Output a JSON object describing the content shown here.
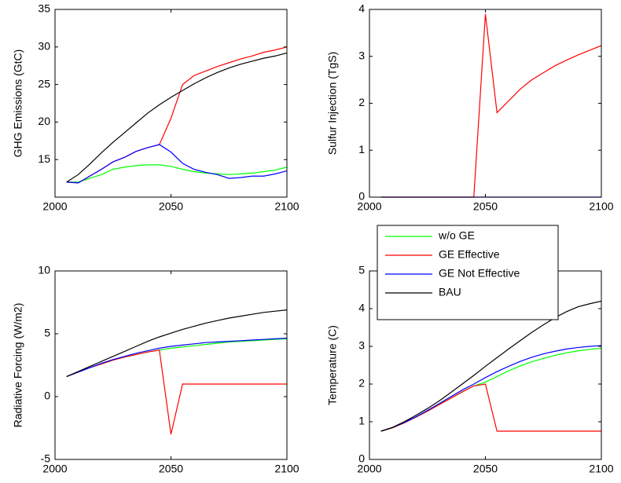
{
  "chart_data": [
    {
      "type": "line",
      "ylabel": "GHG Emissions (GtC)",
      "x": [
        2005,
        2010,
        2015,
        2020,
        2025,
        2030,
        2035,
        2040,
        2045,
        2050,
        2055,
        2060,
        2065,
        2070,
        2075,
        2080,
        2085,
        2090,
        2095,
        2100
      ],
      "xlim": [
        2000,
        2100
      ],
      "xticks": [
        2000,
        2050,
        2100
      ],
      "ylim": [
        10,
        35
      ],
      "yticks": [
        15,
        20,
        25,
        30,
        35
      ],
      "series": [
        {
          "color": "#00ff00",
          "values": [
            12,
            12,
            12.5,
            13,
            13.7,
            14,
            14.2,
            14.3,
            14.3,
            14.1,
            13.7,
            13.4,
            13.2,
            13.1,
            13.0,
            13.1,
            13.2,
            13.4,
            13.6,
            14.0
          ]
        },
        {
          "color": "#ff0000",
          "values": [
            12,
            11.9,
            12.8,
            13.7,
            14.7,
            15.3,
            16.1,
            16.6,
            17.0,
            20.5,
            25,
            26.2,
            26.8,
            27.4,
            27.9,
            28.4,
            28.8,
            29.3,
            29.6,
            30.0
          ]
        },
        {
          "color": "#0000ff",
          "values": [
            12,
            11.9,
            12.8,
            13.7,
            14.7,
            15.3,
            16.1,
            16.6,
            17.0,
            16.0,
            14.5,
            13.7,
            13.3,
            13.0,
            12.5,
            12.6,
            12.8,
            12.8,
            13.1,
            13.5
          ]
        },
        {
          "color": "#000000",
          "values": [
            12,
            13,
            14.4,
            15.9,
            17.3,
            18.6,
            19.9,
            21.2,
            22.3,
            23.3,
            24.2,
            25.1,
            25.9,
            26.6,
            27.2,
            27.7,
            28.1,
            28.5,
            28.8,
            29.2
          ]
        }
      ]
    },
    {
      "type": "line",
      "ylabel": "Sulfur Injection (TgS)",
      "x": [
        2005,
        2010,
        2015,
        2020,
        2025,
        2030,
        2035,
        2040,
        2045,
        2050,
        2055,
        2060,
        2065,
        2070,
        2075,
        2080,
        2085,
        2090,
        2095,
        2100
      ],
      "xlim": [
        2000,
        2100
      ],
      "xticks": [
        2000,
        2050,
        2100
      ],
      "ylim": [
        0,
        4
      ],
      "yticks": [
        0,
        1,
        2,
        3,
        4
      ],
      "series": [
        {
          "color": "#ff0000",
          "values": [
            0,
            0,
            0,
            0,
            0,
            0,
            0,
            0,
            0,
            3.9,
            1.8,
            2.05,
            2.3,
            2.5,
            2.65,
            2.8,
            2.92,
            3.03,
            3.13,
            3.23
          ]
        },
        {
          "color": "#0000ff",
          "values": [
            0,
            0,
            0,
            0,
            0,
            0,
            0,
            0,
            0,
            0,
            0,
            0,
            0,
            0,
            0,
            0,
            0,
            0,
            0,
            0
          ]
        }
      ]
    },
    {
      "type": "line",
      "ylabel": "Radiative Forcing (W/m2)",
      "x": [
        2005,
        2010,
        2015,
        2020,
        2025,
        2030,
        2035,
        2040,
        2045,
        2050,
        2055,
        2060,
        2065,
        2070,
        2075,
        2080,
        2085,
        2090,
        2095,
        2100
      ],
      "xlim": [
        2000,
        2100
      ],
      "xticks": [
        2000,
        2050,
        2100
      ],
      "ylim": [
        -5,
        10
      ],
      "yticks": [
        -5,
        0,
        5,
        10
      ],
      "series": [
        {
          "color": "#00ff00",
          "values": [
            1.6,
            1.95,
            2.3,
            2.6,
            2.9,
            3.15,
            3.35,
            3.55,
            3.7,
            3.85,
            3.95,
            4.05,
            4.15,
            4.25,
            4.35,
            4.4,
            4.45,
            4.5,
            4.55,
            4.6
          ]
        },
        {
          "color": "#ff0000",
          "values": [
            1.6,
            1.95,
            2.3,
            2.6,
            2.9,
            3.15,
            3.35,
            3.55,
            3.7,
            -3,
            1,
            1,
            1,
            1,
            1,
            1,
            1,
            1,
            1,
            1
          ]
        },
        {
          "color": "#0000ff",
          "values": [
            1.6,
            1.95,
            2.3,
            2.65,
            2.95,
            3.2,
            3.45,
            3.65,
            3.85,
            4.0,
            4.1,
            4.2,
            4.3,
            4.35,
            4.4,
            4.45,
            4.5,
            4.55,
            4.6,
            4.65
          ]
        },
        {
          "color": "#000000",
          "values": [
            1.6,
            2.0,
            2.4,
            2.8,
            3.2,
            3.6,
            4.0,
            4.4,
            4.75,
            5.05,
            5.35,
            5.6,
            5.85,
            6.05,
            6.25,
            6.4,
            6.55,
            6.7,
            6.8,
            6.9
          ]
        }
      ]
    },
    {
      "type": "line",
      "ylabel": "Temperature (C)",
      "legend": "upper left",
      "x": [
        2005,
        2010,
        2015,
        2020,
        2025,
        2030,
        2035,
        2040,
        2045,
        2050,
        2055,
        2060,
        2065,
        2070,
        2075,
        2080,
        2085,
        2090,
        2095,
        2100
      ],
      "xlim": [
        2000,
        2100
      ],
      "xticks": [
        2000,
        2050,
        2100
      ],
      "ylim": [
        0,
        5
      ],
      "yticks": [
        0,
        1,
        2,
        3,
        4,
        5
      ],
      "series": [
        {
          "name": "w/o GE",
          "color": "#00ff00",
          "values": [
            0.75,
            0.84,
            0.97,
            1.12,
            1.28,
            1.45,
            1.62,
            1.79,
            1.95,
            2.05,
            2.2,
            2.35,
            2.48,
            2.59,
            2.68,
            2.76,
            2.83,
            2.88,
            2.92,
            2.95
          ]
        },
        {
          "name": "GE Effective",
          "color": "#ff0000",
          "values": [
            0.75,
            0.84,
            0.97,
            1.12,
            1.28,
            1.45,
            1.62,
            1.79,
            1.95,
            2.0,
            0.75,
            0.75,
            0.75,
            0.75,
            0.75,
            0.75,
            0.75,
            0.75,
            0.75,
            0.75
          ]
        },
        {
          "name": "GE Not Effective",
          "color": "#0000ff",
          "values": [
            0.75,
            0.85,
            0.98,
            1.13,
            1.3,
            1.48,
            1.66,
            1.84,
            2.0,
            2.17,
            2.33,
            2.47,
            2.6,
            2.71,
            2.8,
            2.87,
            2.93,
            2.97,
            3.0,
            3.02
          ]
        },
        {
          "name": "BAU",
          "color": "#000000",
          "values": [
            0.75,
            0.85,
            1.0,
            1.17,
            1.35,
            1.55,
            1.77,
            2.0,
            2.23,
            2.47,
            2.7,
            2.93,
            3.15,
            3.37,
            3.57,
            3.76,
            3.92,
            4.05,
            4.13,
            4.2
          ]
        }
      ]
    }
  ]
}
